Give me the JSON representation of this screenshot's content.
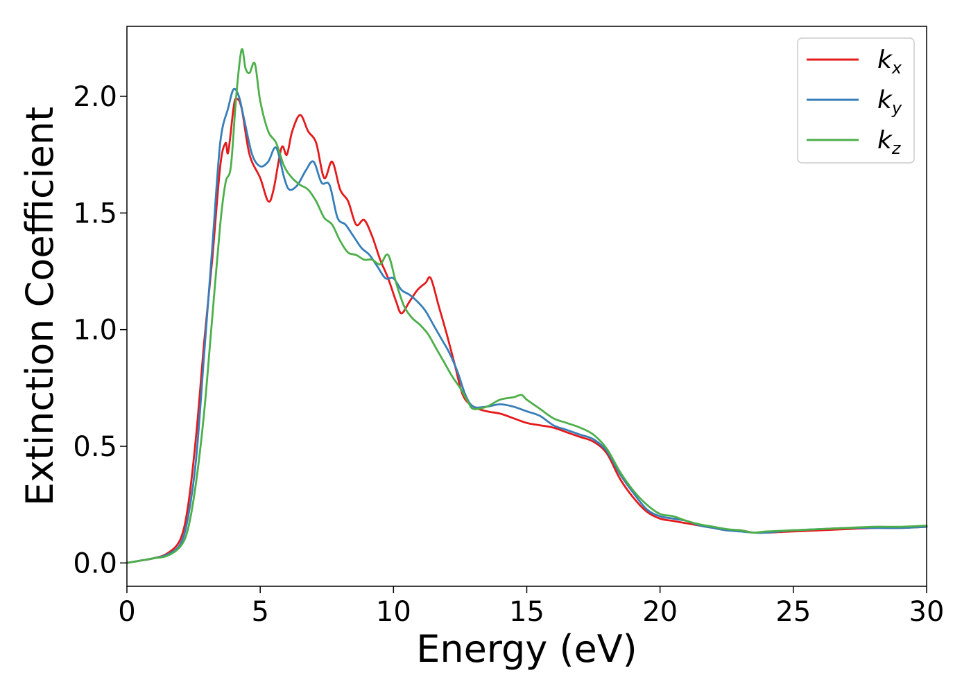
{
  "chart_data": {
    "type": "line",
    "title": "",
    "xlabel": "Energy (eV)",
    "ylabel": "Extinction Coefficient",
    "xlim": [
      0,
      30
    ],
    "ylim": [
      -0.1,
      2.3
    ],
    "x_ticks": [
      0,
      5,
      10,
      15,
      20,
      25,
      30
    ],
    "x_tick_labels": [
      "0",
      "5",
      "10",
      "15",
      "20",
      "25",
      "30"
    ],
    "y_ticks": [
      0.0,
      0.5,
      1.0,
      1.5,
      2.0
    ],
    "y_tick_labels": [
      "0.0",
      "0.5",
      "1.0",
      "1.5",
      "2.0"
    ],
    "grid": false,
    "legend_position": "top-right",
    "series": [
      {
        "name": "k",
        "subscript": "x",
        "color": "#e41a1c",
        "x": [
          0,
          0.5,
          1,
          1.5,
          2,
          2.3,
          2.6,
          2.9,
          3.2,
          3.5,
          3.7,
          3.8,
          4.0,
          4.1,
          4.3,
          4.6,
          5.0,
          5.3,
          5.5,
          5.8,
          6.0,
          6.2,
          6.5,
          6.8,
          7.1,
          7.4,
          7.7,
          8.0,
          8.3,
          8.6,
          8.9,
          9.2,
          9.5,
          9.8,
          10.1,
          10.3,
          10.6,
          10.9,
          11.2,
          11.4,
          11.7,
          12.0,
          12.3,
          12.6,
          13.0,
          13.5,
          14.0,
          14.5,
          15.0,
          15.5,
          16.0,
          16.5,
          17.0,
          17.5,
          18.0,
          18.5,
          19.0,
          19.5,
          20.0,
          20.5,
          21.0,
          21.5,
          22.0,
          22.5,
          23.0,
          23.5,
          24.0,
          25.0,
          26.0,
          27.0,
          28.0,
          29.0,
          30.0
        ],
        "y": [
          0.0,
          0.01,
          0.02,
          0.04,
          0.1,
          0.25,
          0.55,
          0.95,
          1.3,
          1.7,
          1.8,
          1.76,
          1.95,
          1.99,
          1.95,
          1.75,
          1.65,
          1.55,
          1.6,
          1.78,
          1.75,
          1.85,
          1.92,
          1.85,
          1.8,
          1.65,
          1.72,
          1.6,
          1.55,
          1.45,
          1.47,
          1.4,
          1.3,
          1.22,
          1.12,
          1.07,
          1.12,
          1.17,
          1.2,
          1.22,
          1.1,
          0.98,
          0.85,
          0.72,
          0.67,
          0.65,
          0.64,
          0.62,
          0.6,
          0.59,
          0.58,
          0.56,
          0.54,
          0.52,
          0.47,
          0.36,
          0.28,
          0.22,
          0.19,
          0.18,
          0.17,
          0.16,
          0.15,
          0.14,
          0.14,
          0.13,
          0.13,
          0.135,
          0.14,
          0.145,
          0.15,
          0.15,
          0.155
        ]
      },
      {
        "name": "k",
        "subscript": "y",
        "color": "#377eb8",
        "x": [
          0,
          0.5,
          1,
          1.5,
          2,
          2.3,
          2.6,
          2.9,
          3.2,
          3.5,
          3.8,
          4.0,
          4.2,
          4.4,
          4.7,
          5.0,
          5.3,
          5.6,
          5.9,
          6.1,
          6.4,
          6.7,
          7.0,
          7.3,
          7.6,
          7.9,
          8.2,
          8.5,
          8.8,
          9.1,
          9.4,
          9.7,
          10.0,
          10.3,
          10.6,
          10.9,
          11.2,
          11.5,
          11.8,
          12.1,
          12.4,
          12.7,
          13.0,
          13.5,
          14.0,
          14.5,
          15.0,
          15.5,
          16.0,
          16.5,
          17.0,
          17.5,
          18.0,
          18.5,
          19.0,
          19.5,
          20.0,
          20.5,
          21.0,
          21.5,
          22.0,
          22.5,
          23.0,
          23.5,
          24.0,
          25.0,
          26.0,
          27.0,
          28.0,
          29.0,
          30.0
        ],
        "y": [
          0.0,
          0.01,
          0.02,
          0.035,
          0.08,
          0.2,
          0.45,
          0.9,
          1.35,
          1.8,
          1.95,
          2.03,
          2.0,
          1.9,
          1.75,
          1.7,
          1.72,
          1.78,
          1.65,
          1.6,
          1.62,
          1.68,
          1.72,
          1.63,
          1.62,
          1.48,
          1.45,
          1.4,
          1.35,
          1.32,
          1.27,
          1.22,
          1.22,
          1.17,
          1.15,
          1.12,
          1.08,
          1.02,
          0.96,
          0.9,
          0.82,
          0.72,
          0.67,
          0.67,
          0.68,
          0.67,
          0.65,
          0.63,
          0.59,
          0.57,
          0.55,
          0.53,
          0.48,
          0.38,
          0.3,
          0.23,
          0.2,
          0.19,
          0.18,
          0.16,
          0.15,
          0.14,
          0.135,
          0.13,
          0.13,
          0.14,
          0.145,
          0.15,
          0.15,
          0.15,
          0.155
        ]
      },
      {
        "name": "k",
        "subscript": "z",
        "color": "#4daf4a",
        "x": [
          0,
          0.5,
          1,
          1.5,
          2,
          2.3,
          2.6,
          2.9,
          3.2,
          3.5,
          3.7,
          3.9,
          4.1,
          4.3,
          4.45,
          4.6,
          4.8,
          5.0,
          5.3,
          5.6,
          5.9,
          6.2,
          6.5,
          6.8,
          7.1,
          7.4,
          7.7,
          8.0,
          8.3,
          8.6,
          8.9,
          9.2,
          9.5,
          9.8,
          10.1,
          10.4,
          10.7,
          11.0,
          11.3,
          11.6,
          11.9,
          12.2,
          12.5,
          12.8,
          13.0,
          13.5,
          14.0,
          14.5,
          14.8,
          15.0,
          15.5,
          16.0,
          16.5,
          17.0,
          17.5,
          18.0,
          18.5,
          19.0,
          19.5,
          20.0,
          20.5,
          21.0,
          21.5,
          22.0,
          22.5,
          23.0,
          23.5,
          24.0,
          25.0,
          26.0,
          27.0,
          28.0,
          29.0,
          30.0
        ],
        "y": [
          0.0,
          0.01,
          0.02,
          0.03,
          0.07,
          0.15,
          0.35,
          0.65,
          1.05,
          1.45,
          1.63,
          1.7,
          2.0,
          2.2,
          2.12,
          2.1,
          2.14,
          1.98,
          1.85,
          1.8,
          1.7,
          1.65,
          1.62,
          1.6,
          1.55,
          1.48,
          1.45,
          1.38,
          1.33,
          1.32,
          1.3,
          1.3,
          1.28,
          1.32,
          1.2,
          1.1,
          1.05,
          1.02,
          0.98,
          0.92,
          0.86,
          0.8,
          0.75,
          0.69,
          0.66,
          0.67,
          0.7,
          0.71,
          0.72,
          0.7,
          0.66,
          0.62,
          0.6,
          0.58,
          0.55,
          0.49,
          0.39,
          0.31,
          0.25,
          0.21,
          0.2,
          0.18,
          0.165,
          0.155,
          0.145,
          0.14,
          0.13,
          0.135,
          0.14,
          0.145,
          0.15,
          0.155,
          0.155,
          0.16
        ]
      }
    ]
  }
}
